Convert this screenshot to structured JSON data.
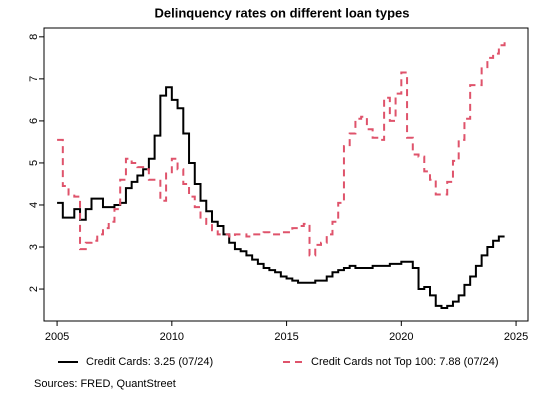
{
  "chart_data": {
    "type": "step",
    "title": "Delinquency rates on different loan types",
    "source": "Sources: FRED, QuantStreet",
    "x": [
      2005,
      2005.25,
      2005.5,
      2005.75,
      2006,
      2006.25,
      2006.5,
      2006.75,
      2007,
      2007.25,
      2007.5,
      2007.75,
      2008,
      2008.25,
      2008.5,
      2008.75,
      2009,
      2009.25,
      2009.5,
      2009.75,
      2010,
      2010.25,
      2010.5,
      2010.75,
      2011,
      2011.25,
      2011.5,
      2011.75,
      2012,
      2012.25,
      2012.5,
      2012.75,
      2013,
      2013.25,
      2013.5,
      2013.75,
      2014,
      2014.25,
      2014.5,
      2014.75,
      2015,
      2015.25,
      2015.5,
      2015.75,
      2016,
      2016.25,
      2016.5,
      2016.75,
      2017,
      2017.25,
      2017.5,
      2017.75,
      2018,
      2018.25,
      2018.5,
      2018.75,
      2019,
      2019.25,
      2019.5,
      2019.75,
      2020,
      2020.25,
      2020.5,
      2020.75,
      2021,
      2021.25,
      2021.5,
      2021.75,
      2022,
      2022.25,
      2022.5,
      2022.75,
      2023,
      2023.25,
      2023.5,
      2023.75,
      2024,
      2024.25,
      2024.5
    ],
    "series": [
      {
        "name": "Credit Cards: 3.25 (07/24)",
        "color": "#000000",
        "dash": false,
        "values": [
          4.05,
          3.7,
          3.7,
          3.9,
          3.65,
          3.9,
          4.15,
          4.15,
          3.95,
          3.95,
          4.0,
          4.05,
          4.4,
          4.55,
          4.7,
          4.85,
          5.1,
          5.65,
          6.6,
          6.8,
          6.5,
          6.3,
          5.7,
          5.0,
          4.5,
          4.1,
          3.85,
          3.6,
          3.5,
          3.3,
          3.1,
          2.95,
          2.9,
          2.8,
          2.7,
          2.6,
          2.5,
          2.45,
          2.4,
          2.3,
          2.25,
          2.2,
          2.15,
          2.15,
          2.15,
          2.2,
          2.2,
          2.3,
          2.4,
          2.45,
          2.5,
          2.55,
          2.5,
          2.5,
          2.5,
          2.55,
          2.55,
          2.55,
          2.6,
          2.6,
          2.65,
          2.65,
          2.5,
          2.0,
          2.05,
          1.85,
          1.6,
          1.55,
          1.6,
          1.7,
          1.85,
          2.1,
          2.3,
          2.55,
          2.8,
          3.0,
          3.15,
          3.25,
          3.25
        ]
      },
      {
        "name": "Credit Cards not Top 100: 7.88 (07/24)",
        "color": "#DF536B",
        "dash": true,
        "values": [
          5.55,
          4.45,
          4.25,
          4.2,
          2.95,
          3.1,
          3.15,
          3.3,
          3.45,
          3.6,
          3.9,
          4.6,
          5.1,
          5.0,
          4.9,
          4.85,
          4.6,
          4.6,
          4.1,
          4.75,
          5.1,
          4.85,
          4.5,
          4.2,
          3.95,
          3.7,
          3.55,
          3.4,
          3.3,
          3.3,
          3.25,
          3.3,
          3.3,
          3.25,
          3.3,
          3.3,
          3.35,
          3.3,
          3.3,
          3.35,
          3.35,
          3.45,
          3.5,
          3.55,
          2.8,
          3.05,
          3.1,
          3.3,
          3.6,
          4.05,
          5.4,
          5.7,
          6.05,
          6.1,
          5.8,
          5.6,
          5.55,
          6.55,
          6.0,
          6.65,
          7.15,
          5.6,
          5.2,
          5.15,
          4.8,
          4.6,
          4.25,
          4.25,
          4.55,
          5.05,
          5.55,
          6.05,
          6.85,
          6.85,
          7.25,
          7.5,
          7.6,
          7.8,
          7.88
        ]
      }
    ],
    "xlim": [
      2004.43,
      2025.52
    ],
    "ylim": [
      1.24,
      8.21
    ],
    "xticks": [
      2005,
      2010,
      2015,
      2020,
      2025
    ],
    "yticks": [
      2,
      3,
      4,
      5,
      6,
      7,
      8
    ],
    "grid": false
  }
}
